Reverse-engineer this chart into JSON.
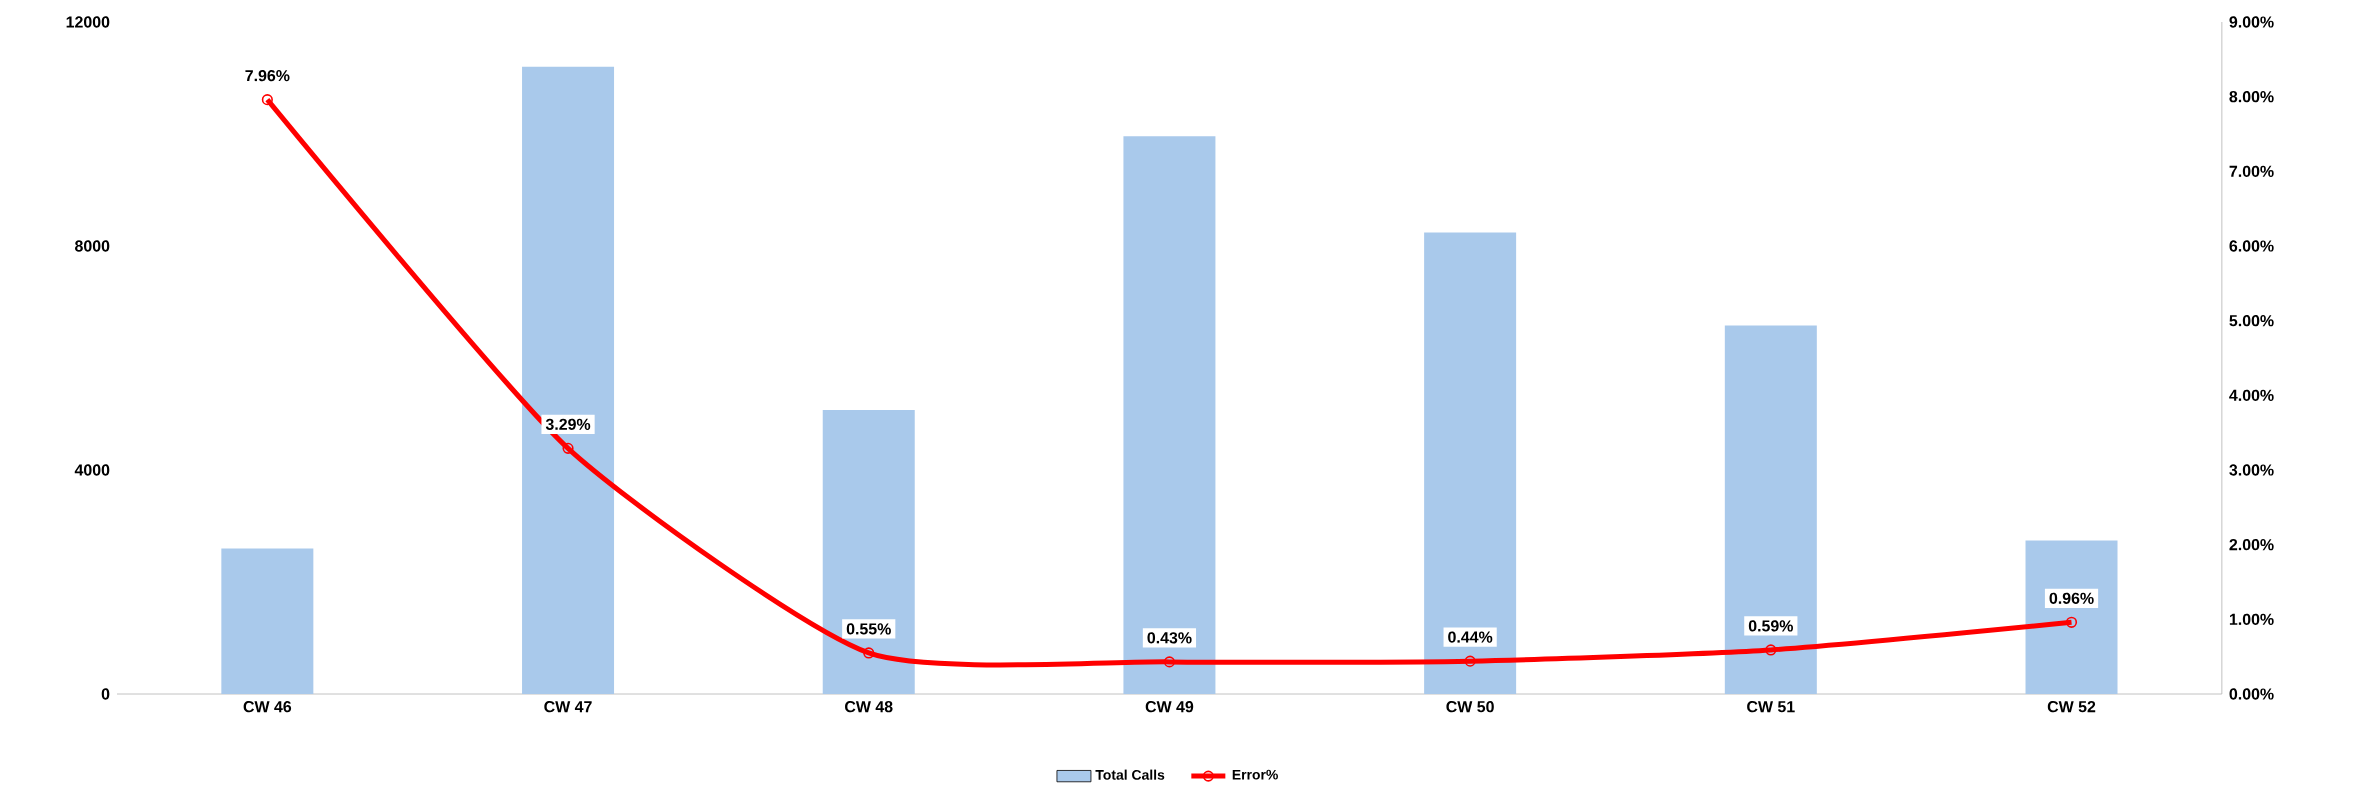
{
  "chart_data": {
    "type": "bar",
    "categories": [
      "CW 46",
      "CW 47",
      "CW 48",
      "CW 49",
      "CW 50",
      "CW 51",
      "CW 52"
    ],
    "series": [
      {
        "name": "Total Calls",
        "color": "#a9c9eb",
        "values": [
          2600,
          11200,
          5070,
          9960,
          8240,
          6580,
          2740
        ]
      },
      {
        "name": "Error%",
        "type": "line",
        "axis": "y2",
        "color": "#ff0000",
        "values": [
          7.96,
          3.29,
          0.55,
          0.43,
          0.44,
          0.59,
          0.96
        ],
        "value_labels": [
          "7.96%",
          "3.29%",
          "0.55%",
          "0.43%",
          "0.44%",
          "0.59%",
          "0.96%"
        ]
      }
    ],
    "ylim": [
      0,
      12000
    ],
    "yticks": [
      0,
      4000,
      8000,
      12000
    ],
    "y2lim": [
      0,
      9
    ],
    "y2ticks": [
      {
        "value": 0,
        "label": "0.00%"
      },
      {
        "value": 1,
        "label": "1.00%"
      },
      {
        "value": 2,
        "label": "2.00%"
      },
      {
        "value": 3,
        "label": "3.00%"
      },
      {
        "value": 4,
        "label": "4.00%"
      },
      {
        "value": 5,
        "label": "5.00%"
      },
      {
        "value": 6,
        "label": "6.00%"
      },
      {
        "value": 7,
        "label": "7.00%"
      },
      {
        "value": 8,
        "label": "8.00%"
      },
      {
        "value": 9,
        "label": "9.00%"
      }
    ],
    "legend": "bottom",
    "marker": "circle"
  }
}
